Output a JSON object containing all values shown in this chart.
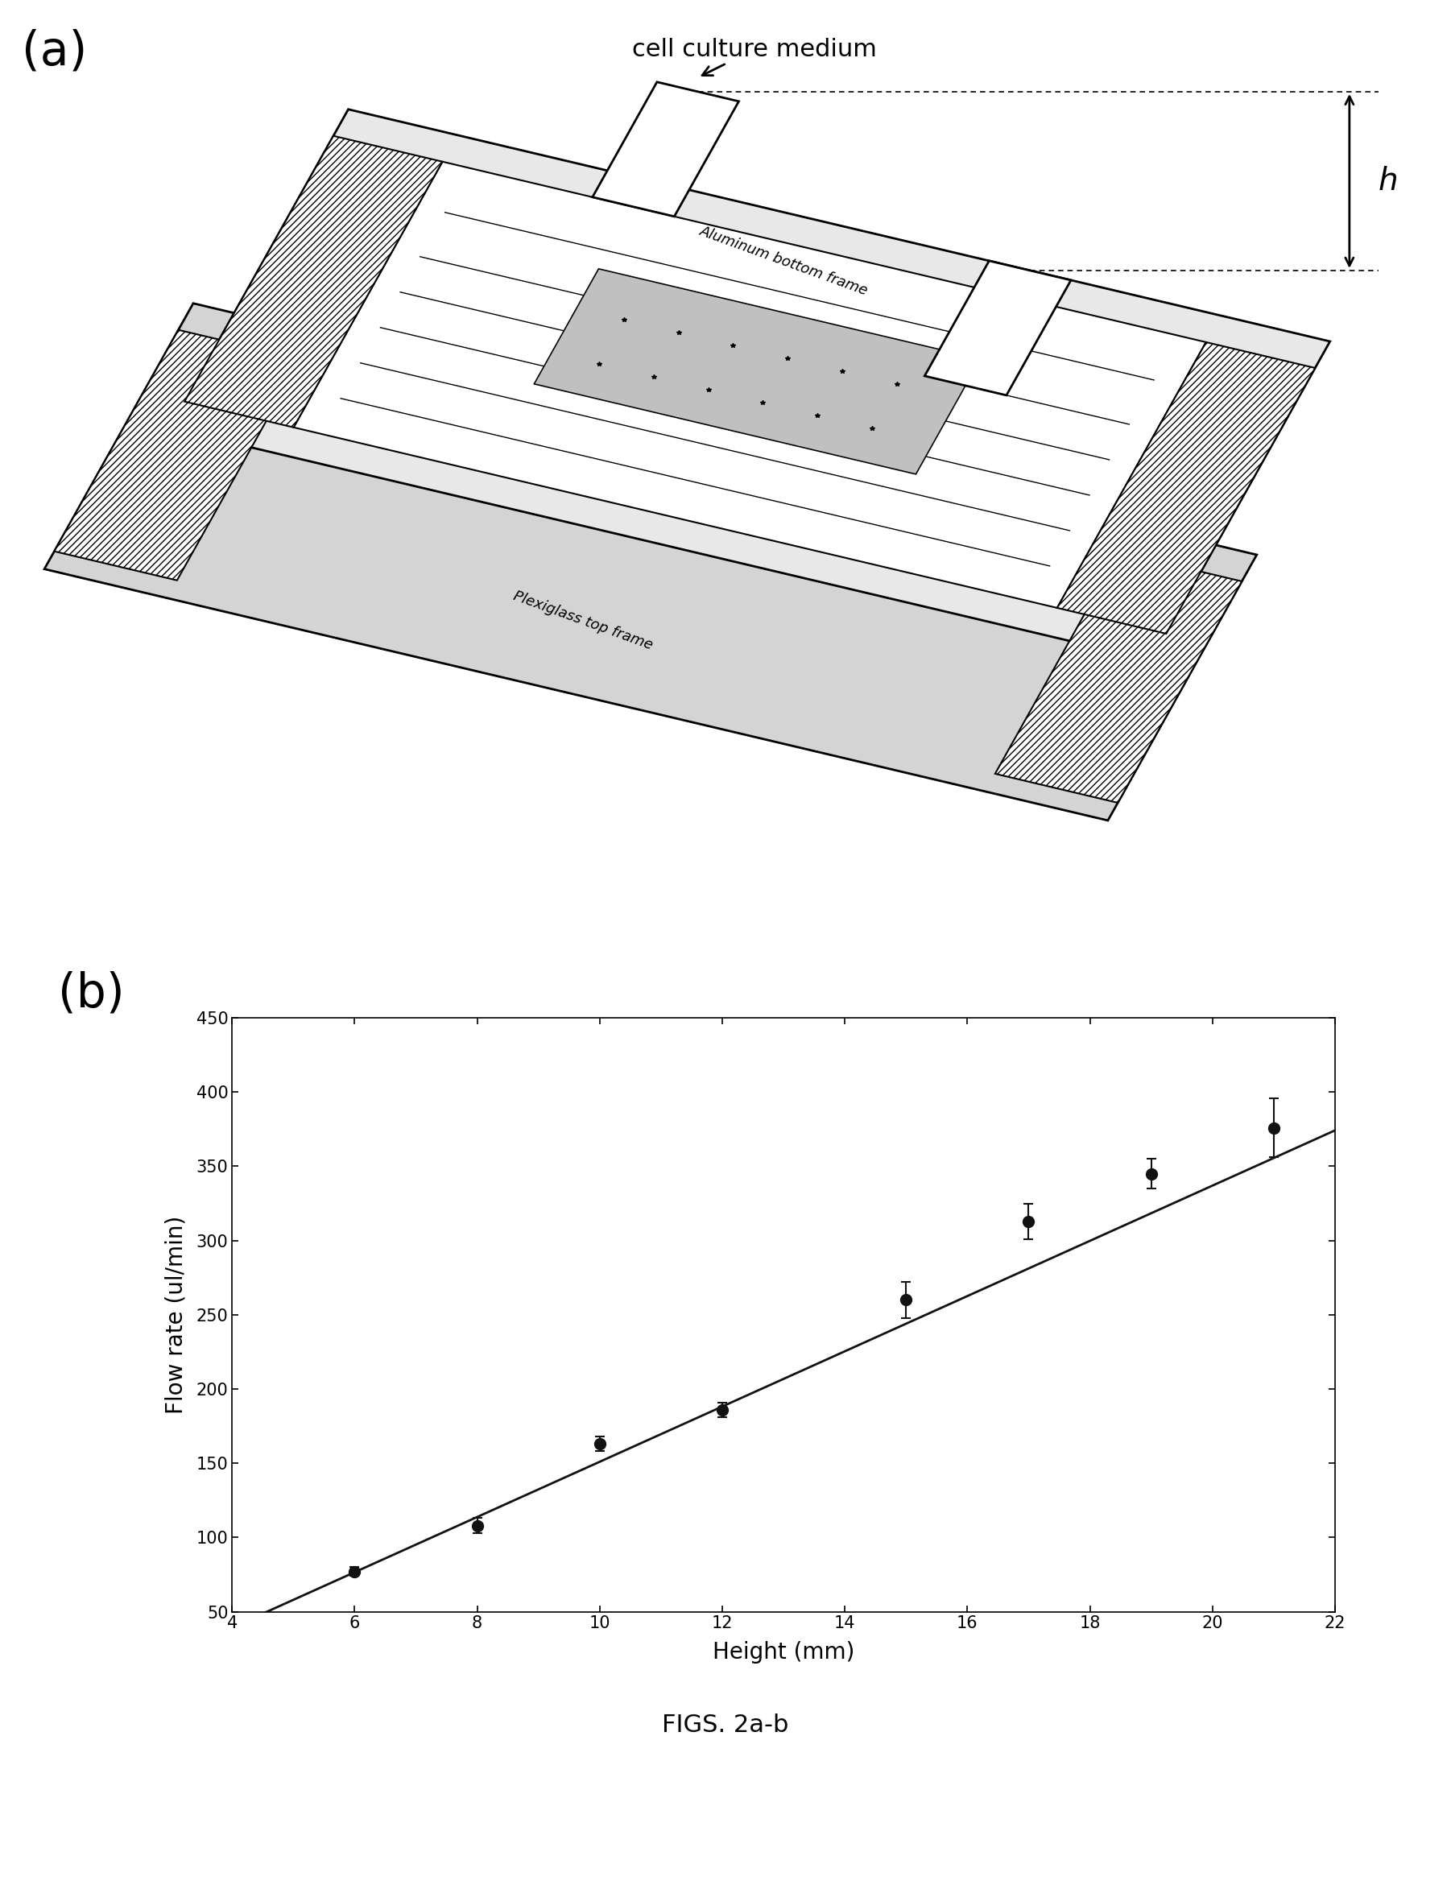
{
  "panel_a_label": "(a)",
  "panel_b_label": "(b)",
  "figure_caption": "FIGS. 2a-b",
  "annotation_text": "cell culture medium",
  "label_h": "h",
  "label_aluminum": "Aluminum bottom frame",
  "label_plexiglass": "Plexiglass top frame",
  "xlabel": "Height (mm)",
  "ylabel": "Flow rate (ul/min)",
  "x_data": [
    6,
    8,
    10,
    12,
    15,
    17,
    19,
    21
  ],
  "y_data": [
    77,
    108,
    163,
    186,
    260,
    313,
    345,
    376
  ],
  "y_err": [
    3,
    5,
    5,
    5,
    12,
    12,
    10,
    20
  ],
  "xlim": [
    4,
    22
  ],
  "ylim": [
    50,
    450
  ],
  "xticks": [
    4,
    6,
    8,
    10,
    12,
    14,
    16,
    18,
    20,
    22
  ],
  "yticks": [
    50,
    100,
    150,
    200,
    250,
    300,
    350,
    400,
    450
  ],
  "line_slope": 18.6,
  "line_intercept": -35.0,
  "background_color": "#ffffff",
  "marker_color": "#111111",
  "line_color": "#111111"
}
